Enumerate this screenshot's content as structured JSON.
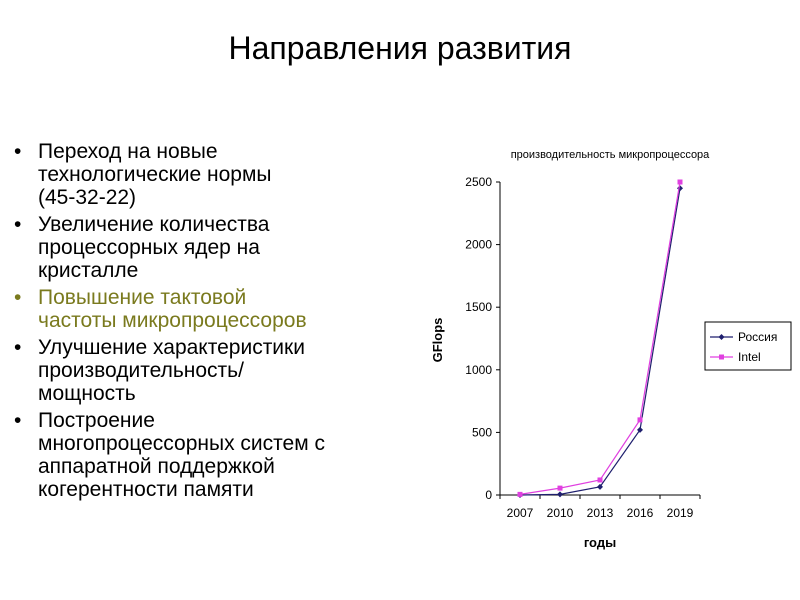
{
  "slide": {
    "title": "Направления развития",
    "bullets": [
      {
        "text": "Переход на новые\nтехнологические нормы\n(45-32-22)",
        "color": "#000000"
      },
      {
        "text": "Увеличение количества\nпроцессорных ядер на\nкристалле",
        "color": "#000000"
      },
      {
        "text": "Повышение тактовой\nчастоты микропроцессоров",
        "color": "#7a7a1e"
      },
      {
        "text": "Улучшение характеристики\nпроизводительность/\n мощность",
        "color": "#000000"
      },
      {
        "text": "Построение\nмногопроцессорных систем с\nаппаратной поддержкой\nкогерентности памяти",
        "color": "#000000"
      }
    ]
  },
  "chart_data": {
    "type": "line",
    "title": "производительность микропроцессора",
    "xlabel": "годы",
    "ylabel": "GFlops",
    "categories": [
      "2007",
      "2010",
      "2013",
      "2016",
      "2019"
    ],
    "ylim": [
      0,
      2500
    ],
    "yticks": [
      "0",
      "500",
      "1000",
      "1500",
      "2000",
      "2500"
    ],
    "legend_position": "right",
    "series": [
      {
        "name": "Россия",
        "values": [
          0,
          5,
          65,
          520,
          2450
        ],
        "color": "#1f1f6e"
      },
      {
        "name": "Intel",
        "values": [
          5,
          55,
          120,
          600,
          2500
        ],
        "color": "#e040e0"
      }
    ]
  }
}
